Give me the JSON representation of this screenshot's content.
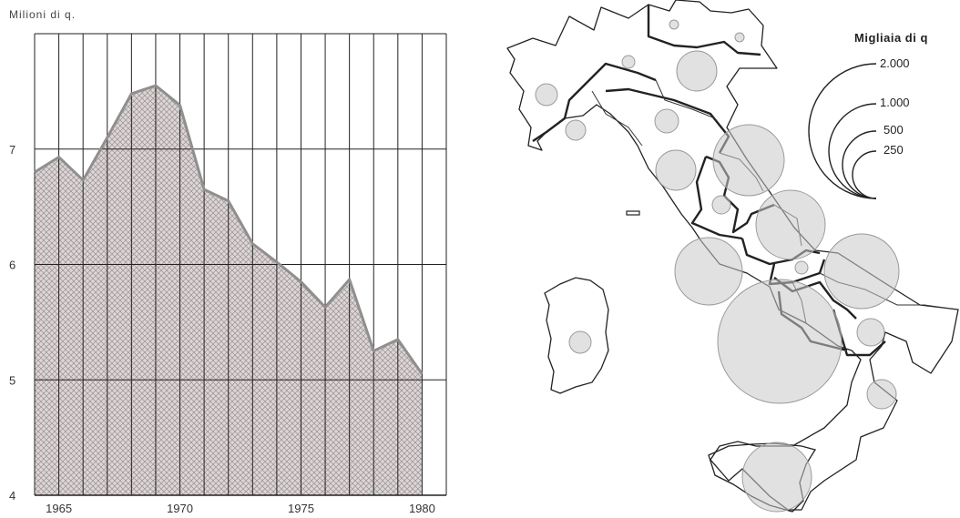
{
  "chart_data": [
    {
      "type": "area",
      "ylabel": "Milioni di q.",
      "x": [
        1964,
        1965,
        1966,
        1967,
        1968,
        1969,
        1970,
        1971,
        1972,
        1973,
        1974,
        1975,
        1976,
        1977,
        1978,
        1979,
        1980
      ],
      "values": [
        6.8,
        6.93,
        6.73,
        7.1,
        7.48,
        7.55,
        7.38,
        6.65,
        6.55,
        6.18,
        6.02,
        5.85,
        5.63,
        5.87,
        5.25,
        5.35,
        5.05
      ],
      "ylim": [
        4,
        8
      ],
      "xlim": [
        1964,
        1981
      ],
      "y_ticks": [
        "4",
        "5",
        "6",
        "7"
      ],
      "x_ticks": [
        "1965",
        "1970",
        "1975",
        "1980"
      ],
      "grid": true
    },
    {
      "type": "proportional-symbol map",
      "legend_title": "Migliaia di q",
      "legend_values": [
        "2.000",
        "1.000",
        "500",
        "250"
      ]
    }
  ]
}
